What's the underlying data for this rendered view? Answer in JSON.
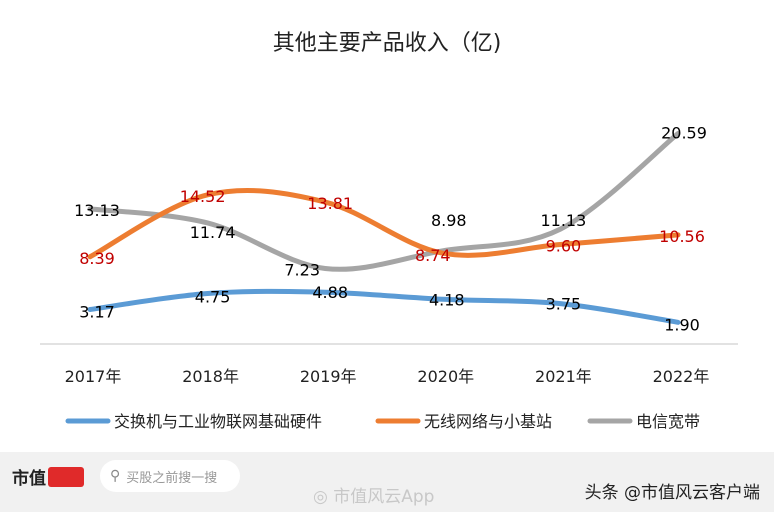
{
  "chart_data": {
    "type": "line",
    "title": "其他主要产品收入（亿)",
    "categories": [
      "2017年",
      "2018年",
      "2019年",
      "2020年",
      "2021年",
      "2022年"
    ],
    "xlabel": "",
    "ylabel": "",
    "ylim": [
      0,
      22
    ],
    "grid": false,
    "smooth": true,
    "legend_position": "bottom",
    "series": [
      {
        "name": "交换机与工业物联网基础硬件",
        "color": "#5b9bd5",
        "label_color": "#000000",
        "values": [
          3.17,
          4.75,
          4.88,
          4.18,
          3.75,
          1.9
        ],
        "labels": [
          "3.17",
          "4.75",
          "4.88",
          "4.18",
          "3.75",
          "1.90"
        ]
      },
      {
        "name": "无线网络与小基站",
        "color": "#ed7d31",
        "label_color": "#c00000",
        "values": [
          8.39,
          14.52,
          13.81,
          8.74,
          9.6,
          10.56
        ],
        "labels": [
          "8.39",
          "14.52",
          "13.81",
          "8.74",
          "9.60",
          "10.56"
        ]
      },
      {
        "name": "电信宽带",
        "color": "#a5a5a5",
        "label_color": "#000000",
        "values": [
          13.13,
          11.74,
          7.23,
          8.98,
          11.13,
          20.59
        ],
        "labels": [
          "13.13",
          "11.74",
          "7.23",
          "8.98",
          "11.13",
          "20.59"
        ]
      }
    ]
  },
  "footer": {
    "logo_text": "市值",
    "search_placeholder": "买股之前搜一搜",
    "weibo_text": "市值风云App",
    "toutiao_text": "头条 @市值风云客户端"
  }
}
